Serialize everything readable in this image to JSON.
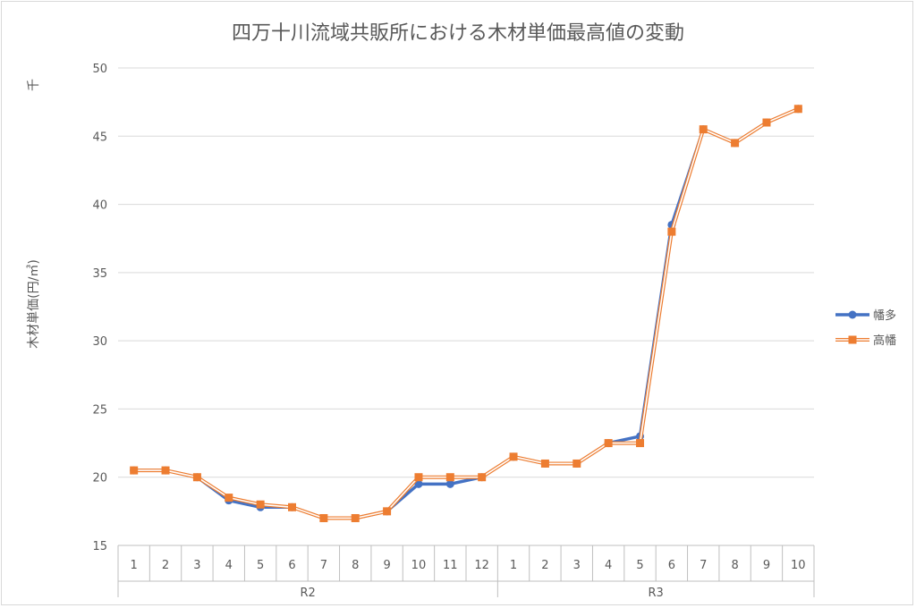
{
  "chart_data": {
    "type": "line",
    "title": "四万十川流域共販所における木材単価最高値の変動",
    "ylabel": "木材単価(円/㎥)",
    "yunit": "千",
    "ylim": [
      15,
      50
    ],
    "ytick_step": 5,
    "grid": true,
    "legend_position": "right",
    "groups": [
      {
        "label": "R2",
        "categories": [
          "1",
          "2",
          "3",
          "4",
          "5",
          "6",
          "7",
          "8",
          "9",
          "10",
          "11",
          "12"
        ]
      },
      {
        "label": "R3",
        "categories": [
          "1",
          "2",
          "3",
          "4",
          "5",
          "6",
          "7",
          "8",
          "9",
          "10"
        ]
      }
    ],
    "series": [
      {
        "name": "幡多",
        "color": "#4472C4",
        "marker": "circle",
        "values": [
          20.5,
          20.5,
          20,
          18.3,
          17.8,
          17.8,
          17,
          17,
          17.5,
          19.5,
          19.5,
          20,
          21.5,
          21,
          21,
          22.5,
          23,
          38.5,
          45.5,
          44.5,
          46,
          47
        ]
      },
      {
        "name": "高幡",
        "color": "#ED7D31",
        "marker": "square",
        "values": [
          20.5,
          20.5,
          20,
          18.5,
          18,
          17.8,
          17,
          17,
          17.5,
          20,
          20,
          20,
          21.5,
          21,
          21,
          22.5,
          22.5,
          38,
          45.5,
          44.5,
          46,
          47
        ]
      }
    ]
  }
}
